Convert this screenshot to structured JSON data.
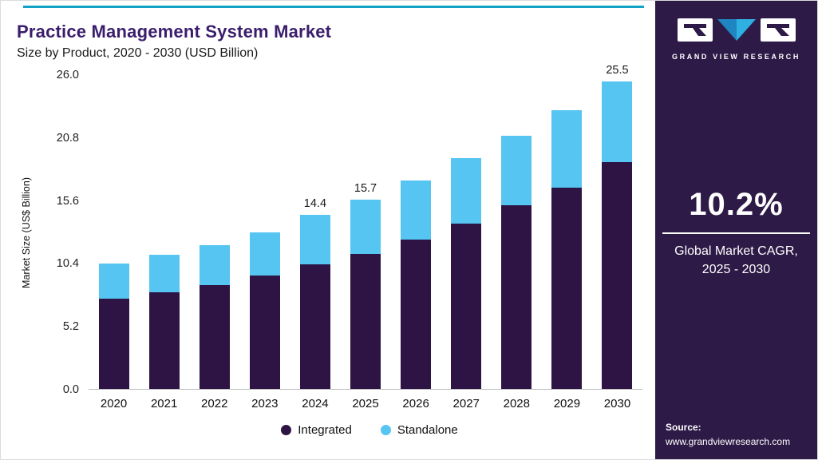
{
  "header": {
    "title": "Practice Management System Market",
    "subtitle": "Size by Product, 2020 - 2030 (USD Billion)"
  },
  "chart_data": {
    "type": "bar",
    "stacked": true,
    "title": "Practice Management System Market Size by Product, 2020 - 2030 (USD Billion)",
    "xlabel": "",
    "ylabel": "Market Size (US$ Billion)",
    "ylim": [
      0,
      26
    ],
    "yticks": [
      "26.0",
      "20.8",
      "15.6",
      "10.4",
      "5.2",
      "0.0"
    ],
    "grid": false,
    "legend_position": "bottom",
    "categories": [
      "2020",
      "2021",
      "2022",
      "2023",
      "2024",
      "2025",
      "2026",
      "2027",
      "2028",
      "2029",
      "2030"
    ],
    "series": [
      {
        "name": "Integrated",
        "color": "#2d1445",
        "values": [
          7.5,
          8.0,
          8.6,
          9.4,
          10.3,
          11.2,
          12.4,
          13.7,
          15.2,
          16.7,
          18.8
        ]
      },
      {
        "name": "Standalone",
        "color": "#56c5f1",
        "values": [
          2.9,
          3.1,
          3.3,
          3.6,
          4.1,
          4.5,
          4.9,
          5.4,
          5.8,
          6.4,
          6.7
        ]
      }
    ],
    "totals": [
      10.4,
      11.1,
      11.9,
      13.0,
      14.4,
      15.7,
      17.3,
      19.1,
      21.0,
      23.1,
      25.5
    ],
    "data_labels": {
      "2024": "14.4",
      "2025": "15.7",
      "2030": "25.5"
    }
  },
  "sidebar": {
    "brand": "GRAND VIEW RESEARCH",
    "cagr_value": "10.2%",
    "cagr_line1": "Global Market CAGR,",
    "cagr_line2": "2025 - 2030",
    "source_label": "Source:",
    "source_url": "www.grandviewresearch.com"
  },
  "colors": {
    "accent": "#13a3c6",
    "title_purple": "#3b1d6d",
    "panel_bg": "#2e1a47",
    "integrated": "#2d1445",
    "standalone": "#56c5f1",
    "logo_blue": "#2fb0e2"
  }
}
